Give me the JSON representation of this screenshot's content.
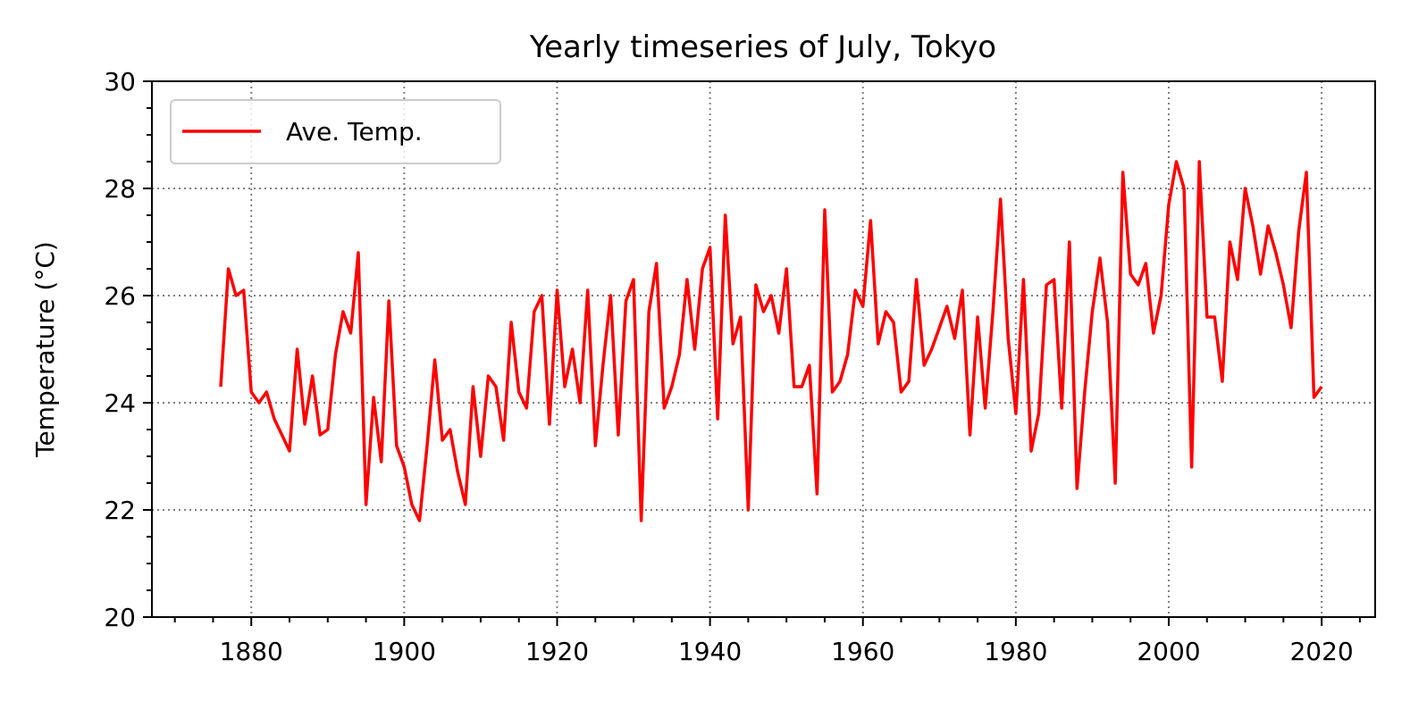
{
  "chart_data": {
    "type": "line",
    "title": "Yearly timeseries of July, Tokyo",
    "xlabel": "",
    "ylabel": "Temperature (°C)",
    "xlim": [
      1867,
      2027
    ],
    "ylim": [
      20,
      30
    ],
    "xticks": [
      1880,
      1900,
      1920,
      1940,
      1960,
      1980,
      2000,
      2020
    ],
    "yticks": [
      20,
      22,
      24,
      26,
      28,
      30
    ],
    "x_minor_step": 5,
    "y_minor_step": 0.5,
    "grid": true,
    "legend_position": "upper-left",
    "series": [
      {
        "name": "Ave. Temp.",
        "color": "#ff0000",
        "x": [
          1876,
          1877,
          1878,
          1879,
          1880,
          1881,
          1882,
          1883,
          1884,
          1885,
          1886,
          1887,
          1888,
          1889,
          1890,
          1891,
          1892,
          1893,
          1894,
          1895,
          1896,
          1897,
          1898,
          1899,
          1900,
          1901,
          1902,
          1903,
          1904,
          1905,
          1906,
          1907,
          1908,
          1909,
          1910,
          1911,
          1912,
          1913,
          1914,
          1915,
          1916,
          1917,
          1918,
          1919,
          1920,
          1921,
          1922,
          1923,
          1924,
          1925,
          1926,
          1927,
          1928,
          1929,
          1930,
          1931,
          1932,
          1933,
          1934,
          1935,
          1936,
          1937,
          1938,
          1939,
          1940,
          1941,
          1942,
          1943,
          1944,
          1945,
          1946,
          1947,
          1948,
          1949,
          1950,
          1951,
          1952,
          1953,
          1954,
          1955,
          1956,
          1957,
          1958,
          1959,
          1960,
          1961,
          1962,
          1963,
          1964,
          1965,
          1966,
          1967,
          1968,
          1969,
          1970,
          1971,
          1972,
          1973,
          1974,
          1975,
          1976,
          1977,
          1978,
          1979,
          1980,
          1981,
          1982,
          1983,
          1984,
          1985,
          1986,
          1987,
          1988,
          1989,
          1990,
          1991,
          1992,
          1993,
          1994,
          1995,
          1996,
          1997,
          1998,
          1999,
          2000,
          2001,
          2002,
          2003,
          2004,
          2005,
          2006,
          2007,
          2008,
          2009,
          2010,
          2011,
          2012,
          2013,
          2014,
          2015,
          2016,
          2017,
          2018,
          2019,
          2020
        ],
        "values": [
          24.3,
          26.5,
          26.0,
          26.1,
          24.2,
          24.0,
          24.2,
          23.7,
          23.4,
          23.1,
          25.0,
          23.6,
          24.5,
          23.4,
          23.5,
          24.9,
          25.7,
          25.3,
          26.8,
          22.1,
          24.1,
          22.9,
          25.9,
          23.2,
          22.8,
          22.1,
          21.8,
          23.2,
          24.8,
          23.3,
          23.5,
          22.7,
          22.1,
          24.3,
          23.0,
          24.5,
          24.3,
          23.3,
          25.5,
          24.2,
          23.9,
          25.7,
          26.0,
          23.6,
          26.1,
          24.3,
          25.0,
          24.0,
          26.1,
          23.2,
          24.7,
          26.0,
          23.4,
          25.9,
          26.3,
          21.8,
          25.7,
          26.6,
          23.9,
          24.3,
          24.9,
          26.3,
          25.0,
          26.5,
          26.9,
          23.7,
          27.5,
          25.1,
          25.6,
          22.0,
          26.2,
          25.7,
          26.0,
          25.3,
          26.5,
          24.3,
          24.3,
          24.7,
          22.3,
          27.6,
          24.2,
          24.4,
          24.9,
          26.1,
          25.8,
          27.4,
          25.1,
          25.7,
          25.5,
          24.2,
          24.4,
          26.3,
          24.7,
          25.0,
          25.4,
          25.8,
          25.2,
          26.1,
          23.4,
          25.6,
          23.9,
          25.7,
          27.8,
          25.2,
          23.8,
          26.3,
          23.1,
          23.8,
          26.2,
          26.3,
          23.9,
          27.0,
          22.4,
          24.2,
          25.7,
          26.7,
          25.5,
          22.5,
          28.3,
          26.4,
          26.2,
          26.6,
          25.3,
          26.0,
          27.7,
          28.5,
          28.0,
          22.8,
          28.5,
          25.6,
          25.6,
          24.4,
          27.0,
          26.3,
          28.0,
          27.3,
          26.4,
          27.3,
          26.8,
          26.2,
          25.4,
          27.2,
          28.3,
          24.1,
          24.3
        ]
      }
    ]
  }
}
